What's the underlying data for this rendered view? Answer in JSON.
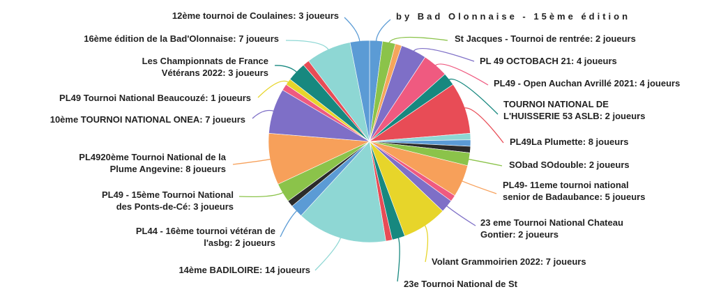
{
  "chart_data": {
    "type": "pie",
    "title": "by Bad Olonnaise - 15ème édition",
    "legend": "none",
    "series_unit": "joueurs",
    "slices": [
      {
        "label": "Bad Olonnaise - 15ème édition",
        "value": 2,
        "color": "#5b9bd5",
        "lines": [
          "by Bad Olonnaise - 15ème édition"
        ]
      },
      {
        "label": "St Jacques - Tournoi de rentrée",
        "value": 2,
        "color": "#8bc34a",
        "lines": [
          "St Jacques - Tournoi de rentrée: 2 joueurs"
        ]
      },
      {
        "label": "?",
        "value": 1,
        "color": "#f5a55c",
        "lines": []
      },
      {
        "label": "PL 49 OCTOBACH 21",
        "value": 4,
        "color": "#7e6fc7",
        "lines": [
          "PL 49 OCTOBACH 21: 4 joueurs"
        ]
      },
      {
        "label": "PL49 - Open Auchan Avrillé 2021",
        "value": 4,
        "color": "#ef5a80",
        "lines": [
          "PL49 - Open Auchan Avrillé 2021: 4 joueurs"
        ]
      },
      {
        "label": "TOURNOI NATIONAL DE L'HUISSERIE 53 ASLB",
        "value": 2,
        "color": "#17887f",
        "lines": [
          "TOURNOI NATIONAL DE",
          "L'HUISSERIE 53 ASLB: 2 joueurs"
        ]
      },
      {
        "label": "PL49La Plumette",
        "value": 8,
        "color": "#e84c56",
        "lines": [
          "PL49La Plumette: 8 joueurs"
        ]
      },
      {
        "label": "?",
        "value": 1,
        "color": "#8ed7d4",
        "lines": []
      },
      {
        "label": "?",
        "value": 1,
        "color": "#5b9bd5",
        "lines": []
      },
      {
        "label": "?",
        "value": 1,
        "color": "#2b2b2b",
        "lines": []
      },
      {
        "label": "SObad SOdouble",
        "value": 2,
        "color": "#8bc34a",
        "lines": [
          "SObad SOdouble: 2 joueurs"
        ]
      },
      {
        "label": "PL49- 11eme tournoi national senior de Badaubance",
        "value": 5,
        "color": "#f7a05a",
        "lines": [
          "PL49- 11eme tournoi national",
          "senior de Badaubance: 5 joueurs"
        ]
      },
      {
        "label": "?",
        "value": 1,
        "color": "#ef5a80",
        "lines": []
      },
      {
        "label": "23 eme Tournoi National Chateau Gontier",
        "value": 2,
        "color": "#7e6fc7",
        "lines": [
          "23 eme Tournoi National Chateau",
          "Gontier: 2 joueurs"
        ]
      },
      {
        "label": "Volant Grammoirien 2022",
        "value": 7,
        "color": "#e7d52a",
        "lines": [
          "Volant Grammoirien 2022: 7 joueurs"
        ]
      },
      {
        "label": "23e Tournoi National de St",
        "value": 2,
        "color": "#17887f",
        "lines": [
          "23e Tournoi National de St"
        ]
      },
      {
        "label": "?",
        "value": 1,
        "color": "#e84c56",
        "lines": []
      },
      {
        "label": "14ème BADILOIRE",
        "value": 14,
        "color": "#8ed7d4",
        "lines": [
          "14ème BADILOIRE: 14 joueurs"
        ]
      },
      {
        "label": "PL44 - 16ème tournoi vétéran de l'asbg",
        "value": 2,
        "color": "#5b9bd5",
        "lines": [
          "PL44 - 16ème tournoi vétéran de",
          "l'asbg: 2 joueurs"
        ]
      },
      {
        "label": "?",
        "value": 1,
        "color": "#2b2b2b",
        "lines": []
      },
      {
        "label": "PL49 - 15ème Tournoi National des Ponts-de-Cé",
        "value": 3,
        "color": "#8bc34a",
        "lines": [
          "PL49 - 15ème Tournoi National",
          "des Ponts-de-Cé: 3 joueurs"
        ]
      },
      {
        "label": "PL4920ème Tournoi National de la Plume Angevine",
        "value": 8,
        "color": "#f7a05a",
        "lines": [
          "PL4920ème Tournoi National de la",
          "Plume Angevine: 8 joueurs"
        ]
      },
      {
        "label": "10ème TOURNOI NATIONAL ONEA",
        "value": 7,
        "color": "#7e6fc7",
        "lines": [
          "10ème TOURNOI NATIONAL ONEA: 7 joueurs"
        ]
      },
      {
        "label": "?",
        "value": 1,
        "color": "#ef5a80",
        "lines": []
      },
      {
        "label": "PL49 Tournoi National Beaucouzé",
        "value": 1,
        "color": "#e7d52a",
        "lines": [
          "PL49 Tournoi National Beaucouzé: 1 joueurs"
        ]
      },
      {
        "label": "Les Championnats de France Vétérans 2022",
        "value": 3,
        "color": "#17887f",
        "lines": [
          "Les Championnats de France",
          "Vétérans 2022: 3 joueurs"
        ]
      },
      {
        "label": "?",
        "value": 1,
        "color": "#e84c56",
        "lines": []
      },
      {
        "label": "16ème édition de la Bad'Olonnaise",
        "value": 7,
        "color": "#8ed7d4",
        "lines": [
          "16ème édition de la Bad'Olonnaise: 7 joueurs"
        ]
      },
      {
        "label": "12ème tournoi de Coulaines",
        "value": 3,
        "color": "#5b9bd5",
        "lines": [
          "12ème tournoi de Coulaines: 3 joueurs"
        ]
      }
    ]
  }
}
